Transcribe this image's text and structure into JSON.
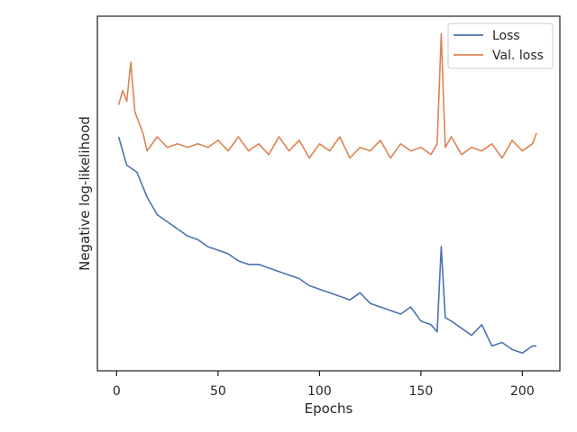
{
  "chart_data": {
    "type": "line",
    "title": "",
    "xlabel": "Epochs",
    "ylabel": "Negative log-likelihood",
    "xlim": [
      -9.5,
      218.5
    ],
    "ylim": [
      0,
      1
    ],
    "x_ticks": [
      0,
      50,
      100,
      150,
      200
    ],
    "y_ticks": [],
    "grid": false,
    "legend_position": "top-right",
    "series": [
      {
        "name": "Loss",
        "color": "#4c72b0",
        "x": [
          1,
          5,
          10,
          15,
          20,
          25,
          30,
          35,
          40,
          45,
          50,
          55,
          60,
          65,
          70,
          75,
          80,
          85,
          90,
          95,
          100,
          105,
          110,
          115,
          120,
          125,
          130,
          135,
          140,
          145,
          150,
          155,
          158,
          160,
          162,
          165,
          170,
          175,
          180,
          185,
          190,
          195,
          200,
          205,
          207
        ],
        "y": [
          0.66,
          0.58,
          0.56,
          0.49,
          0.44,
          0.42,
          0.4,
          0.38,
          0.37,
          0.35,
          0.34,
          0.33,
          0.31,
          0.3,
          0.3,
          0.29,
          0.28,
          0.27,
          0.26,
          0.24,
          0.23,
          0.22,
          0.21,
          0.2,
          0.22,
          0.19,
          0.18,
          0.17,
          0.16,
          0.18,
          0.14,
          0.13,
          0.11,
          0.35,
          0.15,
          0.14,
          0.12,
          0.1,
          0.13,
          0.07,
          0.08,
          0.06,
          0.05,
          0.07,
          0.07
        ]
      },
      {
        "name": "Val. loss",
        "color": "#dd8452",
        "x": [
          1,
          3,
          5,
          7,
          9,
          11,
          13,
          15,
          20,
          25,
          30,
          35,
          40,
          45,
          50,
          55,
          60,
          65,
          70,
          75,
          80,
          85,
          90,
          95,
          100,
          105,
          110,
          115,
          120,
          125,
          130,
          135,
          140,
          145,
          150,
          155,
          158,
          160,
          162,
          165,
          170,
          175,
          180,
          185,
          190,
          195,
          200,
          205,
          207
        ],
        "y": [
          0.75,
          0.79,
          0.76,
          0.87,
          0.73,
          0.7,
          0.67,
          0.62,
          0.66,
          0.63,
          0.64,
          0.63,
          0.64,
          0.63,
          0.65,
          0.62,
          0.66,
          0.62,
          0.64,
          0.61,
          0.66,
          0.62,
          0.65,
          0.6,
          0.64,
          0.62,
          0.66,
          0.6,
          0.63,
          0.62,
          0.65,
          0.6,
          0.64,
          0.62,
          0.63,
          0.61,
          0.64,
          0.95,
          0.63,
          0.66,
          0.61,
          0.63,
          0.62,
          0.64,
          0.6,
          0.65,
          0.62,
          0.64,
          0.67
        ]
      }
    ]
  }
}
